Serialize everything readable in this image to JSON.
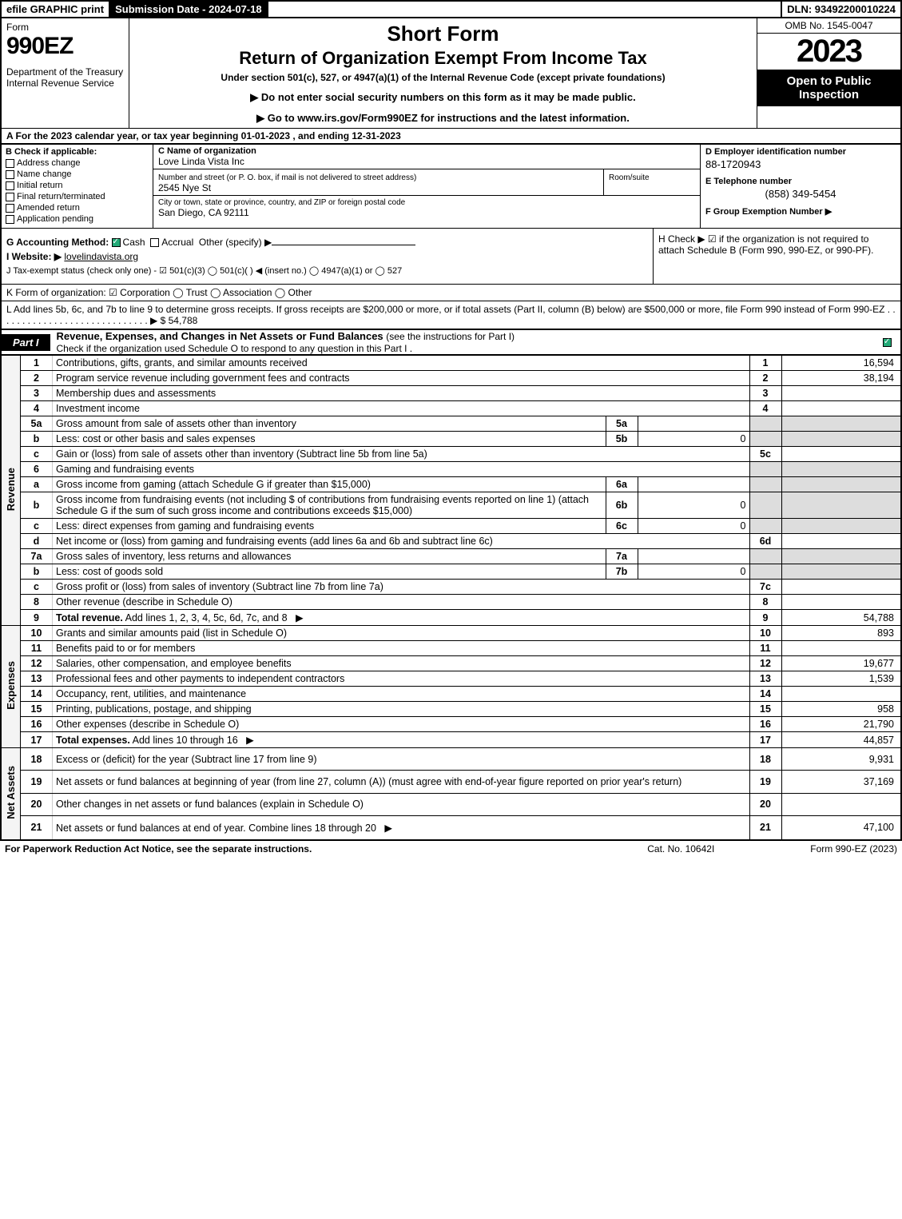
{
  "topbar": {
    "efile": "efile GRAPHIC print",
    "submission": "Submission Date - 2024-07-18",
    "dln": "DLN: 93492200010224"
  },
  "header": {
    "form_label": "Form",
    "form_number": "990EZ",
    "dept": "Department of the Treasury\nInternal Revenue Service",
    "short_form": "Short Form",
    "return_title": "Return of Organization Exempt From Income Tax",
    "under": "Under section 501(c), 527, or 4947(a)(1) of the Internal Revenue Code (except private foundations)",
    "no_ssn": "▶ Do not enter social security numbers on this form as it may be made public.",
    "goto": "▶ Go to www.irs.gov/Form990EZ for instructions and the latest information.",
    "omb": "OMB No. 1545-0047",
    "year": "2023",
    "open": "Open to Public Inspection"
  },
  "section_a": "A  For the 2023 calendar year, or tax year beginning 01-01-2023 , and ending 12-31-2023",
  "section_b": {
    "header": "B  Check if applicable:",
    "opts": [
      "Address change",
      "Name change",
      "Initial return",
      "Final return/terminated",
      "Amended return",
      "Application pending"
    ]
  },
  "section_c": {
    "name_label": "C Name of organization",
    "name": "Love Linda Vista Inc",
    "street_label": "Number and street (or P. O. box, if mail is not delivered to street address)",
    "street": "2545 Nye St",
    "room_label": "Room/suite",
    "city_label": "City or town, state or province, country, and ZIP or foreign postal code",
    "city": "San Diego, CA  92111"
  },
  "section_d": {
    "ein_label": "D Employer identification number",
    "ein": "88-1720943",
    "tel_label": "E Telephone number",
    "tel": "(858) 349-5454",
    "group_label": "F Group Exemption Number  ▶"
  },
  "section_g": {
    "label": "G Accounting Method:",
    "cash": "Cash",
    "accrual": "Accrual",
    "other": "Other (specify) ▶"
  },
  "section_h": "H  Check ▶ ☑ if the organization is not required to attach Schedule B (Form 990, 990-EZ, or 990-PF).",
  "section_i": {
    "label": "I Website: ▶",
    "site": "lovelindavista.org"
  },
  "section_j": "J Tax-exempt status (check only one) - ☑ 501(c)(3)  ◯ 501(c)(  ) ◀ (insert no.)  ◯ 4947(a)(1) or  ◯ 527",
  "section_k": "K Form of organization:  ☑ Corporation  ◯ Trust  ◯ Association  ◯ Other",
  "section_l": {
    "text": "L Add lines 5b, 6c, and 7b to line 9 to determine gross receipts. If gross receipts are $200,000 or more, or if total assets (Part II, column (B) below) are $500,000 or more, file Form 990 instead of Form 990-EZ .  .  .  .  .  .  .  .  .  .  .  .  .  .  .  .  .  .  .  .  .  .  .  .  .  .  .  .  .  ▶ $",
    "val": "54,788"
  },
  "part1": {
    "tab": "Part I",
    "title": "Revenue, Expenses, and Changes in Net Assets or Fund Balances",
    "sub": "(see the instructions for Part I)",
    "check_line": "Check if the organization used Schedule O to respond to any question in this Part I ."
  },
  "sidebar": {
    "revenue": "Revenue",
    "expenses": "Expenses",
    "netassets": "Net Assets"
  },
  "rows": [
    {
      "n": "1",
      "d": "Contributions, gifts, grants, and similar amounts received",
      "box": "1",
      "v": "16,594"
    },
    {
      "n": "2",
      "d": "Program service revenue including government fees and contracts",
      "box": "2",
      "v": "38,194"
    },
    {
      "n": "3",
      "d": "Membership dues and assessments",
      "box": "3",
      "v": ""
    },
    {
      "n": "4",
      "d": "Investment income",
      "box": "4",
      "v": ""
    },
    {
      "n": "5a",
      "d": "Gross amount from sale of assets other than inventory",
      "sub": "5a",
      "sv": "",
      "grey": true
    },
    {
      "n": "b",
      "d": "Less: cost or other basis and sales expenses",
      "sub": "5b",
      "sv": "0",
      "grey": true
    },
    {
      "n": "c",
      "d": "Gain or (loss) from sale of assets other than inventory (Subtract line 5b from line 5a)",
      "box": "5c",
      "v": ""
    },
    {
      "n": "6",
      "d": "Gaming and fundraising events",
      "grey": true
    },
    {
      "n": "a",
      "d": "Gross income from gaming (attach Schedule G if greater than $15,000)",
      "sub": "6a",
      "sv": "",
      "grey": true
    },
    {
      "n": "b",
      "d": "Gross income from fundraising events (not including $                    of contributions from fundraising events reported on line 1) (attach Schedule G if the sum of such gross income and contributions exceeds $15,000)",
      "sub": "6b",
      "sv": "0",
      "grey": true
    },
    {
      "n": "c",
      "d": "Less: direct expenses from gaming and fundraising events",
      "sub": "6c",
      "sv": "0",
      "grey": true
    },
    {
      "n": "d",
      "d": "Net income or (loss) from gaming and fundraising events (add lines 6a and 6b and subtract line 6c)",
      "box": "6d",
      "v": ""
    },
    {
      "n": "7a",
      "d": "Gross sales of inventory, less returns and allowances",
      "sub": "7a",
      "sv": "",
      "grey": true
    },
    {
      "n": "b",
      "d": "Less: cost of goods sold",
      "sub": "7b",
      "sv": "0",
      "grey": true
    },
    {
      "n": "c",
      "d": "Gross profit or (loss) from sales of inventory (Subtract line 7b from line 7a)",
      "box": "7c",
      "v": ""
    },
    {
      "n": "8",
      "d": "Other revenue (describe in Schedule O)",
      "box": "8",
      "v": ""
    },
    {
      "n": "9",
      "d": "Total revenue. Add lines 1, 2, 3, 4, 5c, 6d, 7c, and 8",
      "box": "9",
      "v": "54,788",
      "bold": true,
      "arrow": true
    }
  ],
  "exp_rows": [
    {
      "n": "10",
      "d": "Grants and similar amounts paid (list in Schedule O)",
      "box": "10",
      "v": "893"
    },
    {
      "n": "11",
      "d": "Benefits paid to or for members",
      "box": "11",
      "v": ""
    },
    {
      "n": "12",
      "d": "Salaries, other compensation, and employee benefits",
      "box": "12",
      "v": "19,677"
    },
    {
      "n": "13",
      "d": "Professional fees and other payments to independent contractors",
      "box": "13",
      "v": "1,539"
    },
    {
      "n": "14",
      "d": "Occupancy, rent, utilities, and maintenance",
      "box": "14",
      "v": ""
    },
    {
      "n": "15",
      "d": "Printing, publications, postage, and shipping",
      "box": "15",
      "v": "958"
    },
    {
      "n": "16",
      "d": "Other expenses (describe in Schedule O)",
      "box": "16",
      "v": "21,790"
    },
    {
      "n": "17",
      "d": "Total expenses. Add lines 10 through 16",
      "box": "17",
      "v": "44,857",
      "bold": true,
      "arrow": true
    }
  ],
  "na_rows": [
    {
      "n": "18",
      "d": "Excess or (deficit) for the year (Subtract line 17 from line 9)",
      "box": "18",
      "v": "9,931"
    },
    {
      "n": "19",
      "d": "Net assets or fund balances at beginning of year (from line 27, column (A)) (must agree with end-of-year figure reported on prior year's return)",
      "box": "19",
      "v": "37,169"
    },
    {
      "n": "20",
      "d": "Other changes in net assets or fund balances (explain in Schedule O)",
      "box": "20",
      "v": ""
    },
    {
      "n": "21",
      "d": "Net assets or fund balances at end of year. Combine lines 18 through 20",
      "box": "21",
      "v": "47,100",
      "arrow": true
    }
  ],
  "footer": {
    "left": "For Paperwork Reduction Act Notice, see the separate instructions.",
    "center": "Cat. No. 10642I",
    "right": "Form 990-EZ (2023)"
  },
  "colors": {
    "black": "#000000",
    "white": "#ffffff",
    "grey": "#dddddd",
    "link": "#000088"
  }
}
